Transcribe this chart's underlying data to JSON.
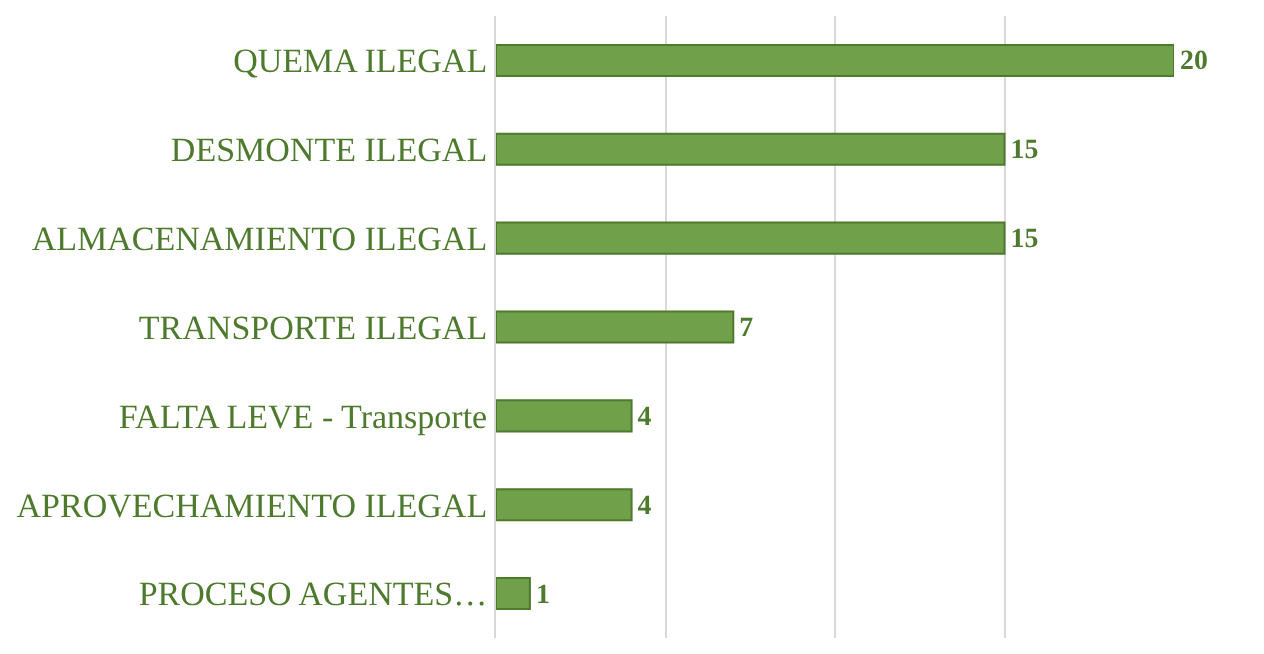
{
  "chart_data": {
    "type": "bar",
    "orientation": "horizontal",
    "categories": [
      "QUEMA ILEGAL",
      "DESMONTE ILEGAL",
      "ALMACENAMIENTO ILEGAL",
      "TRANSPORTE ILEGAL",
      "FALTA LEVE - Transporte",
      "APROVECHAMIENTO ILEGAL",
      "PROCESO AGENTES…"
    ],
    "values": [
      20,
      15,
      15,
      7,
      4,
      4,
      1
    ],
    "color": "#70a04a",
    "data_labels": true,
    "xlim": [
      0,
      20
    ],
    "xticks": [
      {
        "value": 0,
        "label": null
      },
      {
        "value": 5,
        "label": null
      },
      {
        "value": 10,
        "label": null
      },
      {
        "value": 15,
        "label": null
      }
    ],
    "grid": "x",
    "tick_labels": "y",
    "legend": false
  }
}
